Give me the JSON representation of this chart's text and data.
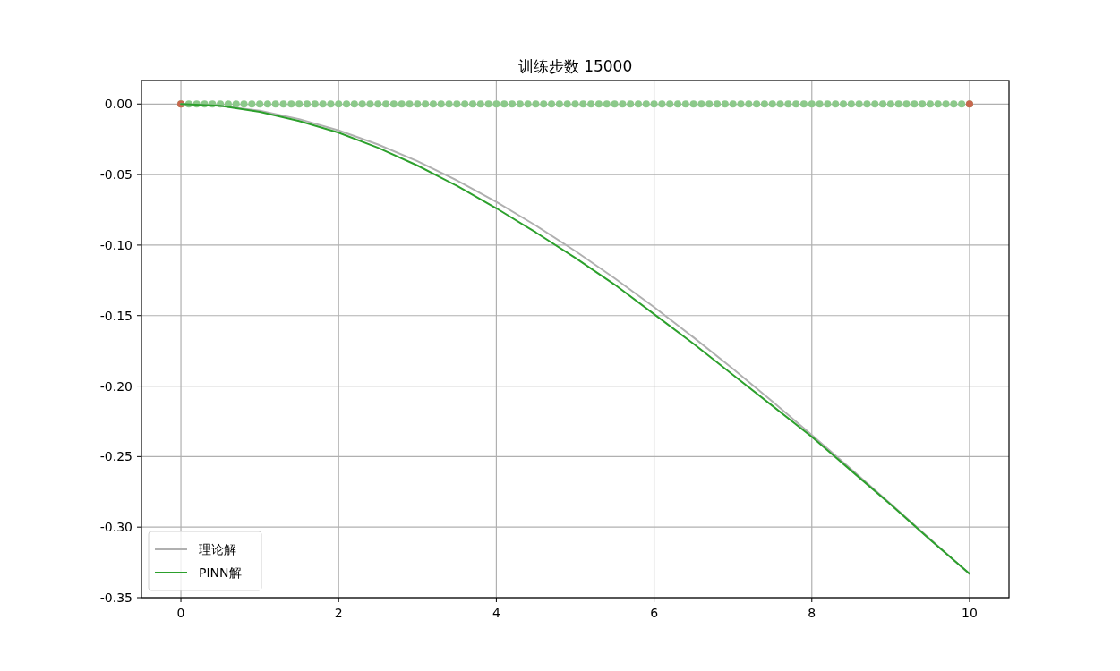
{
  "chart_data": {
    "type": "line",
    "title": "训练步数 15000",
    "xlim": [
      -0.5,
      10.5
    ],
    "xticks": [
      0,
      2,
      4,
      6,
      8,
      10
    ],
    "ylim": [
      -0.35,
      0.01667
    ],
    "yticks": [
      {
        "value": 0,
        "label": "0.00"
      },
      {
        "value": -0.05,
        "label": "-0.05"
      },
      {
        "value": -0.1,
        "label": "-0.10"
      },
      {
        "value": -0.15,
        "label": "-0.15"
      },
      {
        "value": -0.2,
        "label": "-0.20"
      },
      {
        "value": -0.25,
        "label": "-0.25"
      },
      {
        "value": -0.3,
        "label": "-0.30"
      },
      {
        "value": -0.35,
        "label": "-0.35"
      }
    ],
    "grid": true,
    "legend": "bottom left",
    "series": [
      {
        "type": "scatter",
        "marker": "circle",
        "color": "#8cc98a",
        "x": [
          0,
          0.1,
          0.2,
          0.3,
          0.4,
          0.5,
          0.6,
          0.7,
          0.8,
          0.9,
          1,
          1.1,
          1.2,
          1.3,
          1.4,
          1.5,
          1.6,
          1.7,
          1.8,
          1.9,
          2,
          2.1,
          2.2,
          2.3,
          2.4,
          2.5,
          2.6,
          2.7,
          2.8,
          2.9,
          3,
          3.1,
          3.2,
          3.3,
          3.4,
          3.5,
          3.6,
          3.7,
          3.8,
          3.9,
          4,
          4.1,
          4.2,
          4.3,
          4.4,
          4.5,
          4.6,
          4.7,
          4.8,
          4.9,
          5,
          5.1,
          5.2,
          5.3,
          5.4,
          5.5,
          5.6,
          5.7,
          5.8,
          5.9,
          6,
          6.1,
          6.2,
          6.3,
          6.4,
          6.5,
          6.6,
          6.7,
          6.8,
          6.9,
          7,
          7.1,
          7.2,
          7.3,
          7.4,
          7.5,
          7.6,
          7.7,
          7.8,
          7.9,
          8,
          8.1,
          8.2,
          8.3,
          8.4,
          8.5,
          8.6,
          8.7,
          8.8,
          8.9,
          9,
          9.1,
          9.2,
          9.3,
          9.4,
          9.5,
          9.6,
          9.7,
          9.8,
          9.9,
          10
        ],
        "values": [
          0,
          0,
          0,
          0,
          0,
          0,
          0,
          0,
          0,
          0,
          0,
          0,
          0,
          0,
          0,
          0,
          0,
          0,
          0,
          0,
          0,
          0,
          0,
          0,
          0,
          0,
          0,
          0,
          0,
          0,
          0,
          0,
          0,
          0,
          0,
          0,
          0,
          0,
          0,
          0,
          0,
          0,
          0,
          0,
          0,
          0,
          0,
          0,
          0,
          0,
          0,
          0,
          0,
          0,
          0,
          0,
          0,
          0,
          0,
          0,
          0,
          0,
          0,
          0,
          0,
          0,
          0,
          0,
          0,
          0,
          0,
          0,
          0,
          0,
          0,
          0,
          0,
          0,
          0,
          0,
          0,
          0,
          0,
          0,
          0,
          0,
          0,
          0,
          0,
          0,
          0,
          0,
          0,
          0,
          0,
          0,
          0,
          0,
          0,
          0,
          0
        ]
      },
      {
        "type": "scatter",
        "marker": "circle",
        "color": "#c8674e",
        "x": [
          0,
          10
        ],
        "values": [
          0,
          0
        ]
      },
      {
        "type": "line",
        "name": "理论解",
        "color": "#b0b0b0",
        "x": [
          0,
          0.5,
          1,
          1.5,
          2,
          2.5,
          3,
          3.5,
          4,
          4.5,
          5,
          5.5,
          6,
          6.5,
          7,
          7.5,
          8,
          8.5,
          9,
          9.5,
          10
        ],
        "values": [
          0,
          -0.0012,
          -0.0048,
          -0.0107,
          -0.0187,
          -0.0287,
          -0.0405,
          -0.0541,
          -0.0693,
          -0.0861,
          -0.1042,
          -0.1235,
          -0.144,
          -0.1655,
          -0.1878,
          -0.2109,
          -0.2347,
          -0.2589,
          -0.2835,
          -0.3084,
          -0.3333
        ]
      },
      {
        "type": "line",
        "name": "PINN解",
        "color": "#2ca02c",
        "x": [
          0,
          0.5,
          1,
          1.5,
          2,
          2.5,
          3,
          3.5,
          4,
          4.5,
          5,
          5.5,
          6,
          6.5,
          7,
          7.5,
          8,
          8.5,
          9,
          9.5,
          10
        ],
        "values": [
          0,
          -0.0013,
          -0.0055,
          -0.012,
          -0.0203,
          -0.031,
          -0.0436,
          -0.058,
          -0.0739,
          -0.091,
          -0.109,
          -0.128,
          -0.149,
          -0.17,
          -0.192,
          -0.214,
          -0.236,
          -0.26,
          -0.284,
          -0.309,
          -0.333
        ]
      }
    ]
  }
}
